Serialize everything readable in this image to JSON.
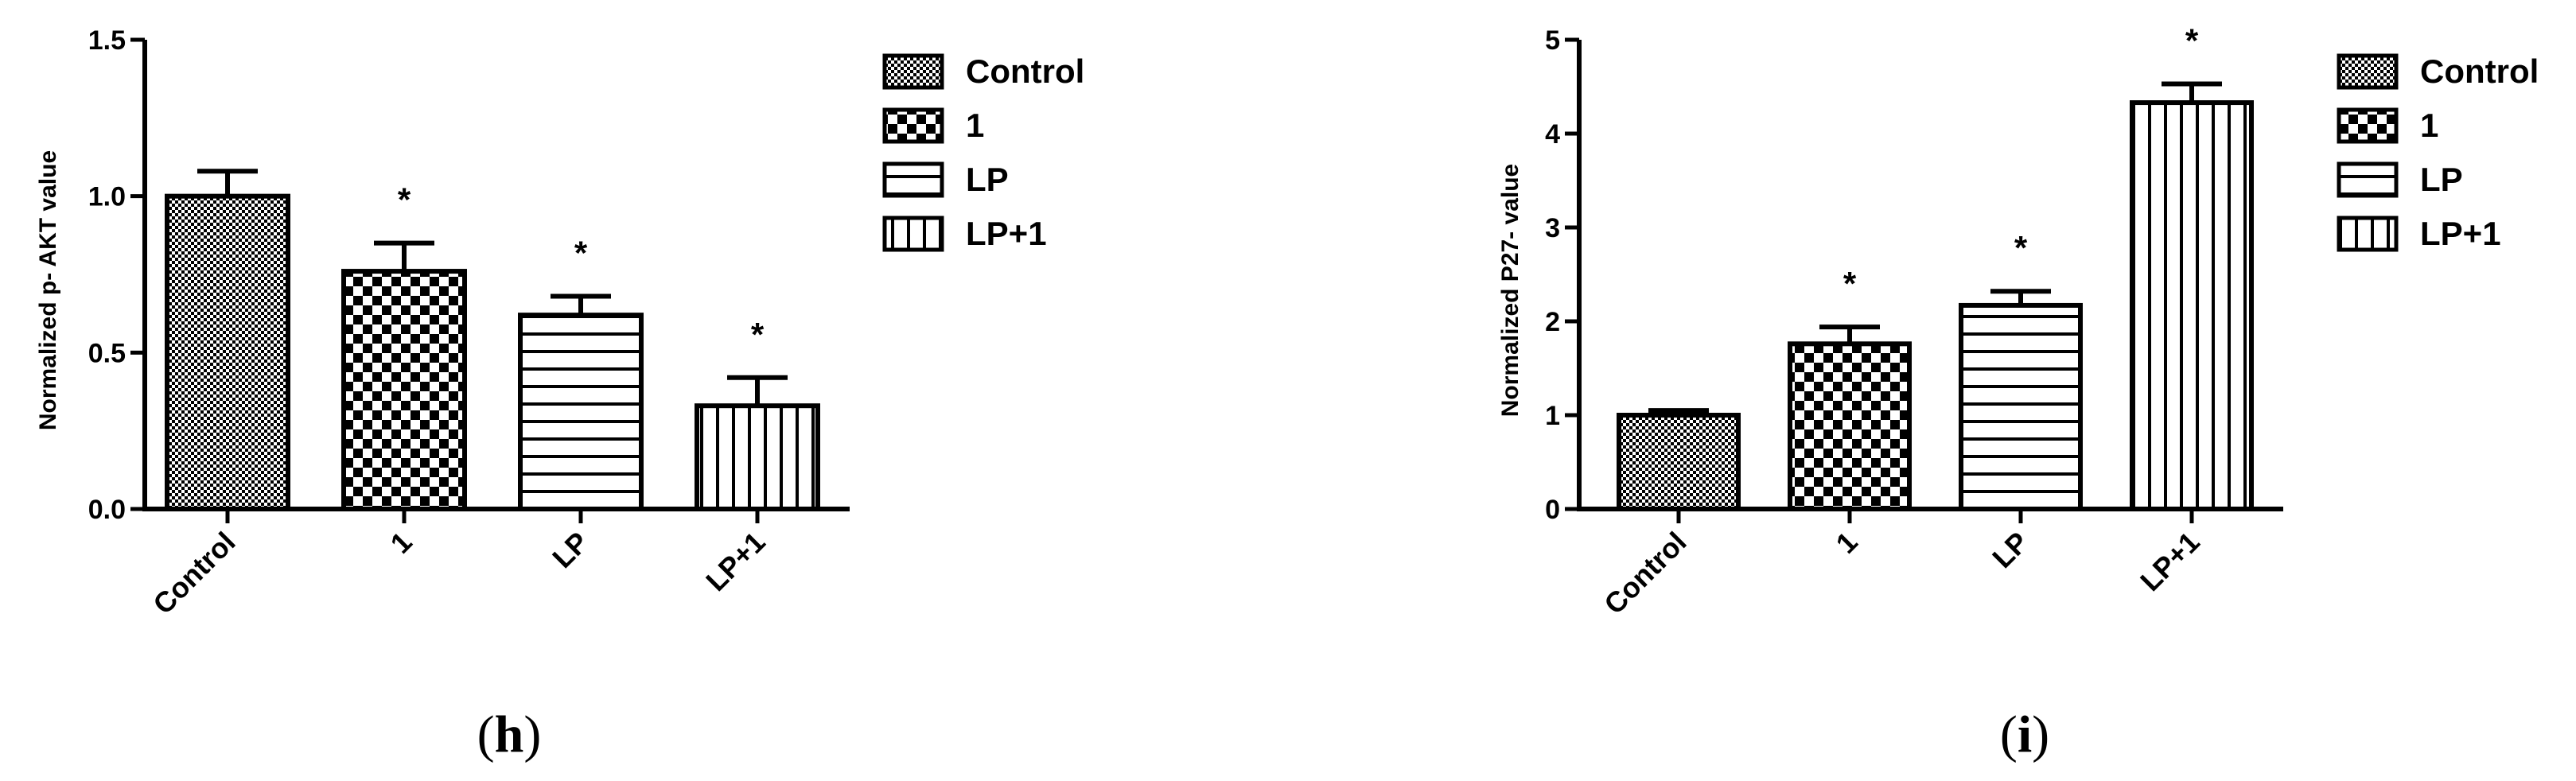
{
  "chart_data": [
    {
      "type": "bar",
      "panel": "h",
      "categories": [
        "Control",
        "1",
        "LP",
        "LP+1"
      ],
      "values": [
        1.0,
        0.76,
        0.62,
        0.33
      ],
      "errors": [
        0.08,
        0.09,
        0.06,
        0.09
      ],
      "significance": [
        "",
        "*",
        "*",
        "*"
      ],
      "ylabel": "Normalized p- AKT value",
      "ylim": [
        0,
        1.5
      ],
      "yticks": [
        0.0,
        0.5,
        1.0,
        1.5
      ],
      "ytick_labels": [
        "0.0",
        "0.5",
        "1.0",
        "1.5"
      ],
      "legend": [
        "Control",
        "1",
        "LP",
        "LP+1"
      ],
      "legend_placement": "right",
      "grid": false,
      "patterns": [
        "fine-dots",
        "checker",
        "horizontal-lines",
        "vertical-lines"
      ]
    },
    {
      "type": "bar",
      "panel": "i",
      "categories": [
        "Control",
        "1",
        "LP",
        "LP+1"
      ],
      "values": [
        1.0,
        1.76,
        2.17,
        4.33
      ],
      "errors": [
        0.05,
        0.18,
        0.15,
        0.2
      ],
      "significance": [
        "",
        "*",
        "*",
        "*"
      ],
      "ylabel": "Normalized P27- value",
      "ylim": [
        0,
        5
      ],
      "yticks": [
        0,
        1,
        2,
        3,
        4,
        5
      ],
      "ytick_labels": [
        "0",
        "1",
        "2",
        "3",
        "4",
        "5"
      ],
      "legend": [
        "Control",
        "1",
        "LP",
        "LP+1"
      ],
      "legend_placement": "right",
      "grid": false,
      "patterns": [
        "fine-dots",
        "checker",
        "horizontal-lines",
        "vertical-lines"
      ]
    }
  ],
  "panels": {
    "h_letter": "h",
    "i_letter": "i"
  }
}
